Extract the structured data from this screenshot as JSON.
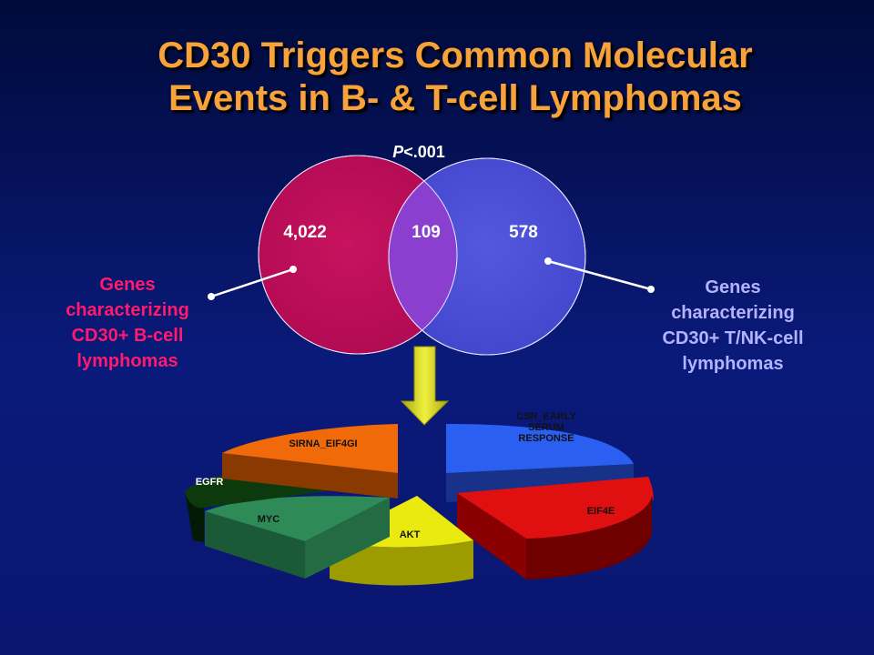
{
  "title": {
    "line1": "CD30 Triggers Common Molecular",
    "line2": "Events in B- & T-cell Lymphomas"
  },
  "venn": {
    "p_symbol": "P",
    "p_value": "<.001",
    "left_count": "4,022",
    "overlap_count": "109",
    "right_count": "578",
    "left_color": "#c0105a",
    "right_color": "#4b4fd6",
    "overlap_color": "#8a3fcf"
  },
  "labels": {
    "left": [
      "Genes",
      "characterizing",
      "CD30+ B-cell",
      "lymphomas"
    ],
    "right": [
      "Genes",
      "characterizing",
      "CD30+ T/NK-cell",
      "lymphomas"
    ]
  },
  "pie": {
    "slices": [
      {
        "name": "CSR_EARLY SERUM RESPONSE",
        "lines": [
          "CSR_EARLY",
          "SERUM",
          "RESPONSE"
        ],
        "color": "#2b5ff2",
        "side": "#18328a"
      },
      {
        "name": "EIF4E",
        "lines": [
          "EIF4E"
        ],
        "color": "#e01010",
        "side": "#6e0000"
      },
      {
        "name": "AKT",
        "lines": [
          "AKT"
        ],
        "color": "#eaea10",
        "side": "#9c9c00"
      },
      {
        "name": "MYC",
        "lines": [
          "MYC"
        ],
        "color": "#2e8b57",
        "side": "#1b5a36"
      },
      {
        "name": "EGFR",
        "lines": [
          "EGFR"
        ],
        "color": "#0c3a0c",
        "side": "#041a04"
      },
      {
        "name": "SIRNA_EIF4GI",
        "lines": [
          "SIRNA_EIF4GI"
        ],
        "color": "#f06a0a",
        "side": "#8a3a00"
      }
    ]
  },
  "arrow_color": "#d8d820"
}
